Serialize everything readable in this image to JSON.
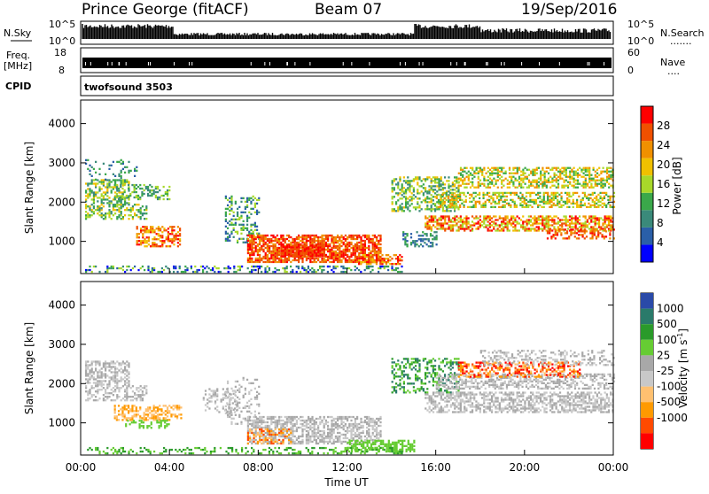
{
  "header": {
    "station": "Prince George (fitACF)",
    "beam": "Beam 07",
    "date": "19/Sep/2016"
  },
  "strip": {
    "nsky_label": "N.Sky",
    "nsearch_label": "N.Search",
    "nsearch_dots": ".......",
    "nsky_ticks": [
      "10^5",
      "10^0"
    ],
    "nsearch_ticks": [
      "10^5",
      "10^0"
    ],
    "freq_label_1": "Freq.",
    "freq_label_2": "[MHz]",
    "freq_ticks": [
      "18",
      "8"
    ],
    "nave_label": "Nave",
    "nave_dots": "....",
    "nave_ticks": [
      "60",
      "0"
    ],
    "cpid_label": "CPID",
    "cpid_value": "twofsound 3503"
  },
  "colors": {
    "strip": "#000000",
    "power_scale": [
      "#0000ff",
      "#2a5fa8",
      "#3a8a7a",
      "#3aa84a",
      "#a8d82a",
      "#f0c000",
      "#f09000",
      "#f05000",
      "#ff0000"
    ],
    "velocity_scale": [
      "#ff0000",
      "#ff4a00",
      "#ff9a00",
      "#ffc070",
      "#c8c8c8",
      "#a8a8a8",
      "#66cc33",
      "#2a9a2a",
      "#2a7a6a",
      "#2a4aa8"
    ]
  },
  "chart_data": [
    {
      "type": "heatmap",
      "name": "Power",
      "ylabel": "Slant Range [km]",
      "ylim": [
        180,
        4600
      ],
      "y_ticks": [
        "1000",
        "2000",
        "3000",
        "4000"
      ],
      "x_ticks": [
        "00:00",
        "04:00",
        "08:00",
        "12:00",
        "16:00",
        "20:00",
        "00:00"
      ],
      "colorbar_label": "Power [dB]",
      "colorbar_ticks": [
        "4",
        "8",
        "12",
        "16",
        "20",
        "24",
        "28"
      ]
    },
    {
      "type": "heatmap",
      "name": "Velocity",
      "ylabel": "Slant Range [km]",
      "ylim": [
        180,
        4600
      ],
      "y_ticks": [
        "1000",
        "2000",
        "3000",
        "4000"
      ],
      "x_ticks": [
        "00:00",
        "04:00",
        "08:00",
        "12:00",
        "16:00",
        "20:00",
        "00:00"
      ],
      "xlabel": "Time UT",
      "colorbar_label": "Velocity [m s",
      "colorbar_label_sup": "-1",
      "colorbar_label_end": "]",
      "colorbar_ticks": [
        "1000",
        "500",
        "100",
        "25",
        "-25",
        "-100",
        "-500",
        "-1000"
      ]
    }
  ]
}
